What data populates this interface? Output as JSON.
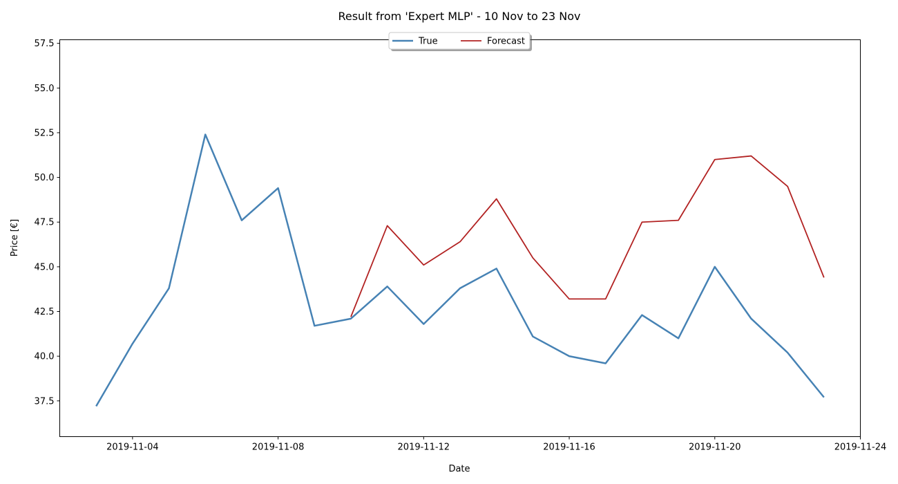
{
  "chart_data": {
    "type": "line",
    "title": "Result from 'Expert MLP' - 10 Nov to 23 Nov",
    "xlabel": "Date",
    "ylabel": "Price [€]",
    "xlim": [
      "2019-11-02",
      "2019-11-24"
    ],
    "ylim": [
      35.5,
      57.7
    ],
    "x_ticks": [
      "2019-11-04",
      "2019-11-08",
      "2019-11-12",
      "2019-11-16",
      "2019-11-20",
      "2019-11-24"
    ],
    "y_ticks": [
      37.5,
      40.0,
      42.5,
      45.0,
      47.5,
      50.0,
      52.5,
      55.0,
      57.5
    ],
    "grid": false,
    "legend": {
      "position": "top-center",
      "columns": 2
    },
    "series": [
      {
        "name": "True",
        "color": "#4682b4",
        "points": [
          [
            "2019-11-03",
            37.2
          ],
          [
            "2019-11-04",
            40.7
          ],
          [
            "2019-11-05",
            43.8
          ],
          [
            "2019-11-06",
            52.4
          ],
          [
            "2019-11-07",
            47.6
          ],
          [
            "2019-11-08",
            49.4
          ],
          [
            "2019-11-09",
            41.7
          ],
          [
            "2019-11-10",
            42.1
          ],
          [
            "2019-11-11",
            43.9
          ],
          [
            "2019-11-12",
            41.8
          ],
          [
            "2019-11-13",
            43.8
          ],
          [
            "2019-11-14",
            44.9
          ],
          [
            "2019-11-15",
            41.1
          ],
          [
            "2019-11-16",
            40.0
          ],
          [
            "2019-11-17",
            39.6
          ],
          [
            "2019-11-18",
            42.3
          ],
          [
            "2019-11-19",
            41.0
          ],
          [
            "2019-11-20",
            45.0
          ],
          [
            "2019-11-21",
            42.1
          ],
          [
            "2019-11-22",
            40.2
          ],
          [
            "2019-11-23",
            37.7
          ]
        ]
      },
      {
        "name": "Forecast",
        "color": "#b22222",
        "points": [
          [
            "2019-11-10",
            42.2
          ],
          [
            "2019-11-11",
            47.3
          ],
          [
            "2019-11-12",
            45.1
          ],
          [
            "2019-11-13",
            46.4
          ],
          [
            "2019-11-14",
            48.8
          ],
          [
            "2019-11-15",
            45.5
          ],
          [
            "2019-11-16",
            43.2
          ],
          [
            "2019-11-17",
            43.2
          ],
          [
            "2019-11-18",
            47.5
          ],
          [
            "2019-11-19",
            47.6
          ],
          [
            "2019-11-20",
            51.0
          ],
          [
            "2019-11-21",
            51.2
          ],
          [
            "2019-11-22",
            49.5
          ],
          [
            "2019-11-23",
            44.4
          ]
        ]
      }
    ]
  }
}
